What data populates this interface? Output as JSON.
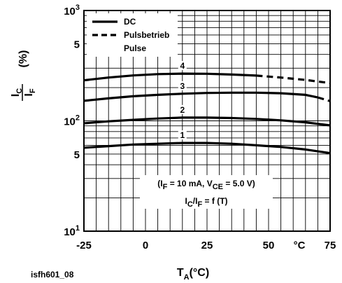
{
  "chart_data": {
    "type": "line",
    "figure_id": "isfh601_08",
    "xlabel": {
      "main": "T",
      "sub": "A",
      "rest": "(°C)"
    },
    "ylabel": {
      "num_main": "I",
      "num_sub": "C",
      "den_main": "I",
      "den_sub": "F",
      "unit": "(%)"
    },
    "x_unit_tick": "°C",
    "xlim": [
      -25,
      75
    ],
    "ylim": [
      10,
      1000
    ],
    "y_scale": "log",
    "x_ticks": [
      {
        "value": -25,
        "label": "-25"
      },
      {
        "value": 0,
        "label": "0"
      },
      {
        "value": 25,
        "label": "25"
      },
      {
        "value": 50,
        "label": "50"
      },
      {
        "value": 75,
        "label": "75"
      }
    ],
    "y_ticks": [
      {
        "value": 1000,
        "base": "10",
        "exp": "3"
      },
      {
        "value": 500,
        "label": "5"
      },
      {
        "value": 100,
        "base": "10",
        "exp": "2"
      },
      {
        "value": 50,
        "label": "5"
      },
      {
        "value": 10,
        "base": "10",
        "exp": "1"
      }
    ],
    "grid": true,
    "legend": {
      "position": "top-left",
      "entries": [
        {
          "style": "solid",
          "lines": [
            "DC"
          ]
        },
        {
          "style": "dashed",
          "lines": [
            "Pulsbetrieb",
            "Pulse"
          ]
        }
      ]
    },
    "annotation": {
      "line1": {
        "open": "(I",
        "s1": "F",
        "mid": " = 10 mA, V",
        "s2": "CE",
        "close": " = 5.0 V)"
      },
      "line2": {
        "a": "I",
        "s1": "C",
        "b": "/I",
        "s2": "F",
        "c": " = f (T)"
      }
    },
    "series": [
      {
        "name": "1",
        "style": "solid",
        "label_x": 15,
        "x": [
          -25,
          -15,
          -5,
          5,
          15,
          25,
          35,
          45,
          55,
          65,
          75
        ],
        "y": [
          57,
          59,
          61,
          62,
          63,
          63,
          62,
          60,
          58,
          55,
          51
        ]
      },
      {
        "name": "2",
        "style": "solid",
        "label_x": 15,
        "x": [
          -25,
          -15,
          -5,
          5,
          15,
          25,
          35,
          45,
          55,
          65,
          75
        ],
        "y": [
          95,
          99,
          102,
          105,
          107,
          107,
          106,
          104,
          101,
          97,
          91
        ]
      },
      {
        "name": "3",
        "style": "solid",
        "label_x": 15,
        "x": [
          -25,
          -15,
          -5,
          5,
          15,
          25,
          35,
          45,
          55,
          65,
          70
        ],
        "y": [
          152,
          160,
          167,
          172,
          176,
          179,
          180,
          180,
          178,
          172,
          163
        ]
      },
      {
        "name": "3",
        "style": "dashed",
        "x": [
          70,
          75
        ],
        "y": [
          163,
          151
        ]
      },
      {
        "name": "4",
        "style": "solid",
        "label_x": 15,
        "x": [
          -25,
          -15,
          -5,
          5,
          15,
          25,
          35,
          45
        ],
        "y": [
          233,
          247,
          258,
          265,
          268,
          267,
          263,
          257
        ]
      },
      {
        "name": "4",
        "style": "dashed",
        "x": [
          45,
          55,
          65,
          75
        ],
        "y": [
          257,
          247,
          235,
          220
        ]
      }
    ]
  }
}
